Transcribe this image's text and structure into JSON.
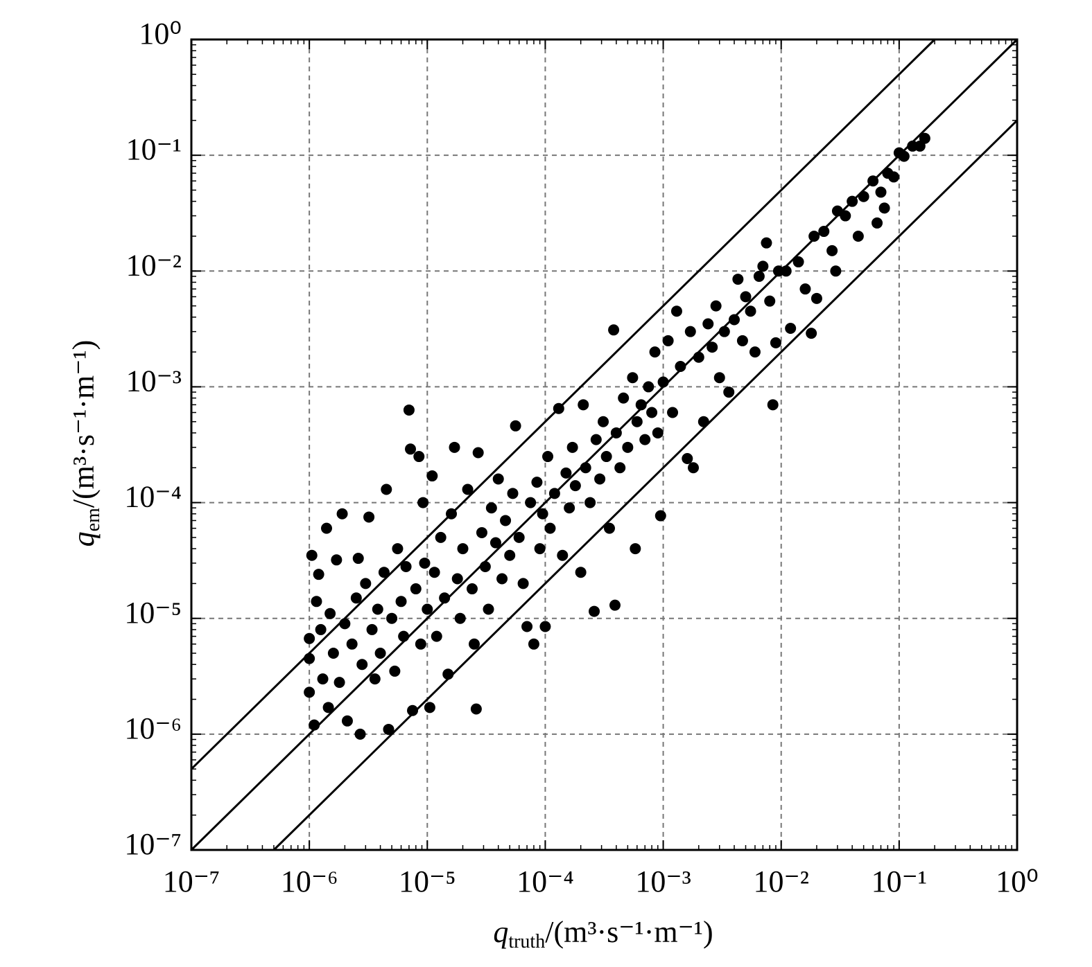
{
  "chart_data": {
    "type": "scatter",
    "xscale": "log",
    "yscale": "log",
    "grid": true,
    "color": "#000000",
    "xlabel": {
      "symbol": "q",
      "subscript": "truth",
      "unit": "/(m³·s⁻¹·m⁻¹)"
    },
    "ylabel": {
      "symbol": "q",
      "subscript": "em",
      "unit": "/(m³·s⁻¹·m⁻¹)"
    },
    "xlim": [
      1e-07,
      1
    ],
    "ylim": [
      1e-07,
      1
    ],
    "xticks": [
      {
        "value": 1e-07,
        "label": "10⁻⁷"
      },
      {
        "value": 1e-06,
        "label": "10⁻⁶"
      },
      {
        "value": 1e-05,
        "label": "10⁻⁵"
      },
      {
        "value": 0.0001,
        "label": "10⁻⁴"
      },
      {
        "value": 0.001,
        "label": "10⁻³"
      },
      {
        "value": 0.01,
        "label": "10⁻²"
      },
      {
        "value": 0.1,
        "label": "10⁻¹"
      },
      {
        "value": 1,
        "label": "10⁰"
      }
    ],
    "yticks": [
      {
        "value": 1e-07,
        "label": "10⁻⁷"
      },
      {
        "value": 1e-06,
        "label": "10⁻⁶"
      },
      {
        "value": 1e-05,
        "label": "10⁻⁵"
      },
      {
        "value": 0.0001,
        "label": "10⁻⁴"
      },
      {
        "value": 0.001,
        "label": "10⁻³"
      },
      {
        "value": 0.01,
        "label": "10⁻²"
      },
      {
        "value": 0.1,
        "label": "10⁻¹"
      },
      {
        "value": 1,
        "label": "10⁰"
      }
    ],
    "reference_lines": [
      {
        "ratio": 5
      },
      {
        "ratio": 1
      },
      {
        "ratio": 0.2
      }
    ],
    "x": [
      1e-06,
      1e-06,
      1e-06,
      1.05e-06,
      1.1e-06,
      1.15e-06,
      1.2e-06,
      1.25e-06,
      1.3e-06,
      1.4e-06,
      1.45e-06,
      1.5e-06,
      1.6e-06,
      1.7e-06,
      1.8e-06,
      1.9e-06,
      2e-06,
      2.1e-06,
      2.3e-06,
      2.5e-06,
      2.6e-06,
      2.7e-06,
      2.8e-06,
      3e-06,
      3.2e-06,
      3.4e-06,
      3.6e-06,
      3.8e-06,
      4e-06,
      4.3e-06,
      4.5e-06,
      4.7e-06,
      5e-06,
      5.3e-06,
      5.6e-06,
      6e-06,
      6.3e-06,
      6.6e-06,
      7e-06,
      7.2e-06,
      7.5e-06,
      8e-06,
      8.5e-06,
      8.8e-06,
      9.2e-06,
      9.5e-06,
      1e-05,
      1.05e-05,
      1.1e-05,
      1.15e-05,
      1.2e-05,
      1.3e-05,
      1.4e-05,
      1.5e-05,
      1.6e-05,
      1.7e-05,
      1.8e-05,
      1.9e-05,
      2e-05,
      2.2e-05,
      2.4e-05,
      2.5e-05,
      2.6e-05,
      2.7e-05,
      2.9e-05,
      3.1e-05,
      3.3e-05,
      3.5e-05,
      3.8e-05,
      4e-05,
      4.3e-05,
      4.6e-05,
      5e-05,
      5.3e-05,
      5.6e-05,
      6e-05,
      6.5e-05,
      7e-05,
      7.5e-05,
      8e-05,
      8.5e-05,
      9e-05,
      9.5e-05,
      0.0001,
      0.000105,
      0.00011,
      0.00012,
      0.00013,
      0.00014,
      0.00015,
      0.00016,
      0.00017,
      0.00018,
      0.0002,
      0.00021,
      0.00022,
      0.00024,
      0.00026,
      0.00027,
      0.00029,
      0.00031,
      0.00033,
      0.00035,
      0.00038,
      0.00039,
      0.0004,
      0.00043,
      0.00046,
      0.0005,
      0.00055,
      0.00058,
      0.0006,
      0.00065,
      0.0007,
      0.00075,
      0.0008,
      0.00085,
      0.0009,
      0.00095,
      0.001,
      0.0011,
      0.0012,
      0.0013,
      0.0014,
      0.0016,
      0.0017,
      0.0018,
      0.002,
      0.0022,
      0.0024,
      0.0026,
      0.0028,
      0.003,
      0.0033,
      0.0036,
      0.004,
      0.0043,
      0.0047,
      0.005,
      0.0055,
      0.006,
      0.0065,
      0.007,
      0.0075,
      0.008,
      0.0085,
      0.009,
      0.0095,
      0.011,
      0.012,
      0.014,
      0.016,
      0.018,
      0.019,
      0.02,
      0.023,
      0.027,
      0.029,
      0.03,
      0.035,
      0.04,
      0.045,
      0.05,
      0.06,
      0.065,
      0.07,
      0.075,
      0.08,
      0.09,
      0.1,
      0.11,
      0.13,
      0.15,
      0.165
    ],
    "y": [
      6.7e-06,
      4.5e-06,
      2.3e-06,
      3.5e-05,
      1.2e-06,
      1.4e-05,
      2.4e-05,
      8e-06,
      3e-06,
      6e-05,
      1.7e-06,
      1.1e-05,
      5e-06,
      3.2e-05,
      2.8e-06,
      8e-05,
      9e-06,
      1.3e-06,
      6e-06,
      1.5e-05,
      3.3e-05,
      1e-06,
      4e-06,
      2e-05,
      7.5e-05,
      8e-06,
      3e-06,
      1.2e-05,
      5e-06,
      2.5e-05,
      0.00013,
      1.1e-06,
      1e-05,
      3.5e-06,
      4e-05,
      1.4e-05,
      7e-06,
      2.8e-05,
      0.00063,
      0.00029,
      1.6e-06,
      1.8e-05,
      0.00025,
      6e-06,
      0.0001,
      3e-05,
      1.2e-05,
      1.7e-06,
      0.00017,
      2.5e-05,
      7e-06,
      5e-05,
      1.5e-05,
      3.3e-06,
      8e-05,
      0.0003,
      2.2e-05,
      1e-05,
      4e-05,
      0.00013,
      1.8e-05,
      6e-06,
      1.65e-06,
      0.00027,
      5.5e-05,
      2.8e-05,
      1.2e-05,
      9e-05,
      4.5e-05,
      0.00016,
      2.2e-05,
      7e-05,
      3.5e-05,
      0.00012,
      0.00046,
      5e-05,
      2e-05,
      8.5e-06,
      0.0001,
      6e-06,
      0.00015,
      4e-05,
      8e-05,
      8.5e-06,
      0.00025,
      6e-05,
      0.00012,
      0.00065,
      3.5e-05,
      0.00018,
      9e-05,
      0.0003,
      0.00014,
      2.5e-05,
      0.0007,
      0.0002,
      0.0001,
      1.15e-05,
      0.00035,
      0.00016,
      0.0005,
      0.00025,
      6e-05,
      0.0031,
      1.3e-05,
      0.0004,
      0.0002,
      0.0008,
      0.0003,
      0.0012,
      4e-05,
      0.0005,
      0.0007,
      0.00035,
      0.001,
      0.0006,
      0.002,
      0.0004,
      7.7e-05,
      0.0011,
      0.0025,
      0.0006,
      0.0045,
      0.0015,
      0.00024,
      0.003,
      0.0002,
      0.0018,
      0.0005,
      0.0035,
      0.0022,
      0.005,
      0.0012,
      0.003,
      0.0009,
      0.0038,
      0.0085,
      0.0025,
      0.006,
      0.0045,
      0.002,
      0.009,
      0.011,
      0.0175,
      0.0055,
      0.0007,
      0.0024,
      0.01,
      0.01,
      0.0032,
      0.012,
      0.007,
      0.0029,
      0.02,
      0.0058,
      0.022,
      0.015,
      0.01,
      0.033,
      0.03,
      0.04,
      0.02,
      0.044,
      0.06,
      0.026,
      0.048,
      0.035,
      0.07,
      0.065,
      0.105,
      0.098,
      0.12,
      0.12,
      0.14
    ]
  }
}
